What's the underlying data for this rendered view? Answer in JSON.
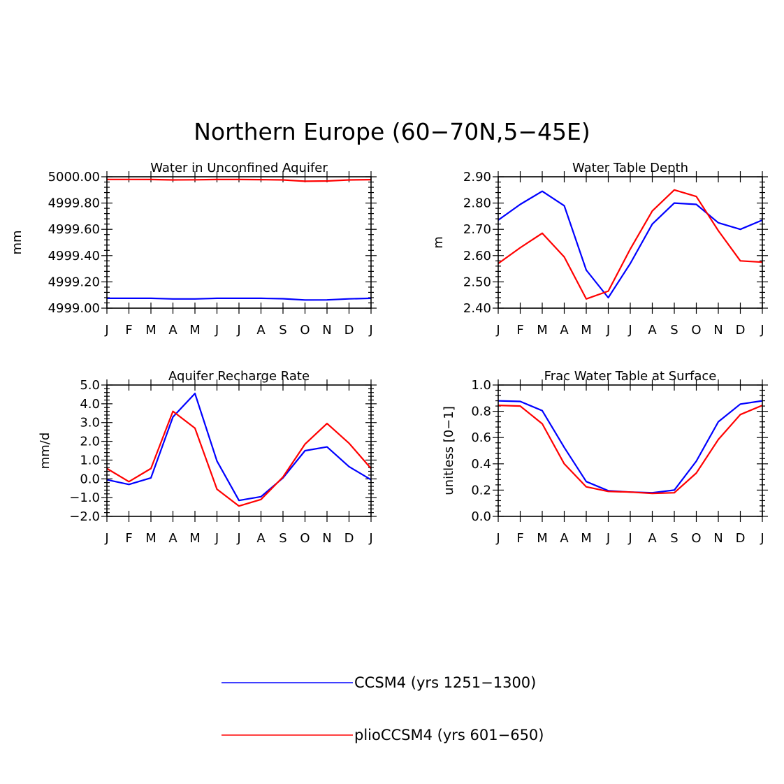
{
  "figure": {
    "title": "Northern Europe (60−70N,5−45E)"
  },
  "series_styles": [
    {
      "name": "CCSM4 (yrs 1251−1300)",
      "color": "#0000ff"
    },
    {
      "name": "plioCCSM4 (yrs 601−650)",
      "color": "#ff0000"
    }
  ],
  "chart_data": [
    {
      "type": "line",
      "title": "Water in Unconfined Aquifer",
      "ylabel": "mm",
      "xlabel": "",
      "categories": [
        "J",
        "F",
        "M",
        "A",
        "M",
        "J",
        "J",
        "A",
        "S",
        "O",
        "N",
        "D",
        "J"
      ],
      "ylim": [
        4999.0,
        5000.0
      ],
      "yticks": [
        4999.0,
        4999.2,
        4999.4,
        4999.6,
        4999.8,
        5000.0
      ],
      "ytick_labels": [
        "4999.00",
        "4999.20",
        "4999.40",
        "4999.60",
        "4999.80",
        "5000.00"
      ],
      "grid": false,
      "series": [
        {
          "name": "CCSM4 (yrs 1251−1300)",
          "values": [
            4999.075,
            4999.075,
            4999.075,
            4999.07,
            4999.07,
            4999.075,
            4999.075,
            4999.075,
            4999.072,
            4999.062,
            4999.063,
            4999.071,
            4999.075
          ]
        },
        {
          "name": "plioCCSM4 (yrs 601−650)",
          "values": [
            4999.98,
            4999.98,
            4999.979,
            4999.976,
            4999.977,
            4999.979,
            4999.979,
            4999.978,
            4999.976,
            4999.966,
            4999.968,
            4999.976,
            4999.978
          ]
        }
      ]
    },
    {
      "type": "line",
      "title": "Water Table Depth",
      "ylabel": "m",
      "xlabel": "",
      "categories": [
        "J",
        "F",
        "M",
        "A",
        "M",
        "J",
        "J",
        "A",
        "S",
        "O",
        "N",
        "D",
        "J"
      ],
      "ylim": [
        2.4,
        2.9
      ],
      "yticks": [
        2.4,
        2.5,
        2.6,
        2.7,
        2.8,
        2.9
      ],
      "ytick_labels": [
        "2.40",
        "2.50",
        "2.60",
        "2.70",
        "2.80",
        "2.90"
      ],
      "grid": false,
      "series": [
        {
          "name": "CCSM4 (yrs 1251−1300)",
          "values": [
            2.735,
            2.795,
            2.845,
            2.79,
            2.545,
            2.44,
            2.57,
            2.72,
            2.8,
            2.795,
            2.725,
            2.7,
            2.735
          ]
        },
        {
          "name": "plioCCSM4 (yrs 601−650)",
          "values": [
            2.57,
            2.63,
            2.685,
            2.595,
            2.435,
            2.465,
            2.625,
            2.77,
            2.85,
            2.825,
            2.695,
            2.58,
            2.575
          ]
        }
      ]
    },
    {
      "type": "line",
      "title": "Aquifer Recharge Rate",
      "ylabel": "mm/d",
      "xlabel": "",
      "categories": [
        "J",
        "F",
        "M",
        "A",
        "M",
        "J",
        "J",
        "A",
        "S",
        "O",
        "N",
        "D",
        "J"
      ],
      "ylim": [
        -2.0,
        5.0
      ],
      "yticks": [
        -2.0,
        -1.0,
        0.0,
        1.0,
        2.0,
        3.0,
        4.0,
        5.0
      ],
      "ytick_labels": [
        "−2.0",
        "−1.0",
        "0.0",
        "1.0",
        "2.0",
        "3.0",
        "4.0",
        "5.0"
      ],
      "grid": false,
      "series": [
        {
          "name": "CCSM4 (yrs 1251−1300)",
          "values": [
            -0.05,
            -0.3,
            0.05,
            3.3,
            4.55,
            0.95,
            -1.15,
            -0.95,
            0.05,
            1.5,
            1.7,
            0.65,
            -0.05
          ]
        },
        {
          "name": "plioCCSM4 (yrs 601−650)",
          "values": [
            0.55,
            -0.15,
            0.55,
            3.6,
            2.7,
            -0.55,
            -1.45,
            -1.1,
            0.1,
            1.85,
            2.95,
            1.9,
            0.55
          ]
        }
      ]
    },
    {
      "type": "line",
      "title": "Frac Water Table at Surface",
      "ylabel": "unitless [0−1]",
      "xlabel": "",
      "categories": [
        "J",
        "F",
        "M",
        "A",
        "M",
        "J",
        "J",
        "A",
        "S",
        "O",
        "N",
        "D",
        "J"
      ],
      "ylim": [
        0.0,
        1.0
      ],
      "yticks": [
        0.0,
        0.2,
        0.4,
        0.6,
        0.8,
        1.0
      ],
      "ytick_labels": [
        "0.0",
        "0.2",
        "0.4",
        "0.6",
        "0.8",
        "1.0"
      ],
      "grid": false,
      "series": [
        {
          "name": "CCSM4 (yrs 1251−1300)",
          "values": [
            0.88,
            0.875,
            0.805,
            0.525,
            0.265,
            0.195,
            0.185,
            0.18,
            0.2,
            0.42,
            0.72,
            0.855,
            0.88
          ]
        },
        {
          "name": "plioCCSM4 (yrs 601−650)",
          "values": [
            0.845,
            0.84,
            0.705,
            0.4,
            0.225,
            0.19,
            0.185,
            0.175,
            0.18,
            0.33,
            0.585,
            0.775,
            0.845
          ]
        }
      ]
    }
  ],
  "legend": {
    "placement": "bottom-center",
    "entries": [
      {
        "label": "CCSM4 (yrs 1251−1300)",
        "color": "#0000ff"
      },
      {
        "label": "plioCCSM4 (yrs 601−650)",
        "color": "#ff0000"
      }
    ]
  }
}
